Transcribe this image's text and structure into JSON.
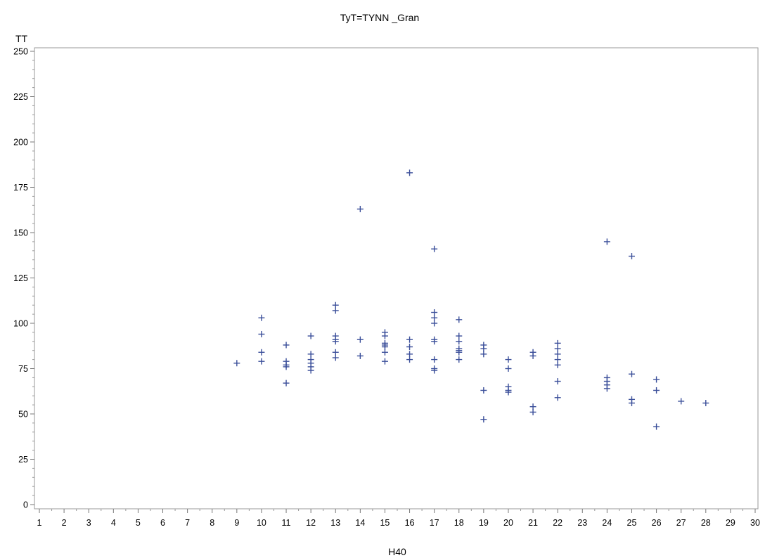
{
  "chart_data": {
    "type": "scatter",
    "title": "TyT=TYNN    _Gran",
    "xlabel": "H40",
    "ylabel": "TT",
    "xlim": [
      1,
      30
    ],
    "ylim": [
      0,
      250
    ],
    "x_ticks": [
      1,
      2,
      3,
      4,
      5,
      6,
      7,
      8,
      9,
      10,
      11,
      12,
      13,
      14,
      15,
      16,
      17,
      18,
      19,
      20,
      21,
      22,
      23,
      24,
      25,
      26,
      27,
      28,
      29,
      30
    ],
    "y_ticks": [
      0,
      25,
      50,
      75,
      100,
      125,
      150,
      175,
      200,
      225,
      250
    ],
    "grid": false,
    "marker": "plus",
    "marker_color": "#3b4f9a",
    "points": [
      [
        9,
        78
      ],
      [
        10,
        103
      ],
      [
        10,
        94
      ],
      [
        10,
        84
      ],
      [
        10,
        79
      ],
      [
        11,
        88
      ],
      [
        11,
        79
      ],
      [
        11,
        77
      ],
      [
        11,
        76
      ],
      [
        11,
        67
      ],
      [
        12,
        93
      ],
      [
        12,
        83
      ],
      [
        12,
        80
      ],
      [
        12,
        78
      ],
      [
        12,
        76
      ],
      [
        12,
        74
      ],
      [
        13,
        110
      ],
      [
        13,
        107
      ],
      [
        13,
        93
      ],
      [
        13,
        91
      ],
      [
        13,
        90
      ],
      [
        13,
        84
      ],
      [
        13,
        81
      ],
      [
        14,
        163
      ],
      [
        14,
        91
      ],
      [
        14,
        82
      ],
      [
        15,
        95
      ],
      [
        15,
        93
      ],
      [
        15,
        89
      ],
      [
        15,
        88
      ],
      [
        15,
        87
      ],
      [
        15,
        84
      ],
      [
        15,
        79
      ],
      [
        16,
        183
      ],
      [
        16,
        91
      ],
      [
        16,
        87
      ],
      [
        16,
        83
      ],
      [
        16,
        80
      ],
      [
        17,
        141
      ],
      [
        17,
        106
      ],
      [
        17,
        103
      ],
      [
        17,
        100
      ],
      [
        17,
        91
      ],
      [
        17,
        90
      ],
      [
        17,
        80
      ],
      [
        17,
        75
      ],
      [
        17,
        74
      ],
      [
        18,
        102
      ],
      [
        18,
        93
      ],
      [
        18,
        90
      ],
      [
        18,
        86
      ],
      [
        18,
        85
      ],
      [
        18,
        84
      ],
      [
        18,
        80
      ],
      [
        19,
        88
      ],
      [
        19,
        86
      ],
      [
        19,
        83
      ],
      [
        19,
        63
      ],
      [
        19,
        47
      ],
      [
        20,
        80
      ],
      [
        20,
        75
      ],
      [
        20,
        65
      ],
      [
        20,
        63
      ],
      [
        20,
        62
      ],
      [
        21,
        84
      ],
      [
        21,
        82
      ],
      [
        21,
        54
      ],
      [
        21,
        51
      ],
      [
        22,
        89
      ],
      [
        22,
        86
      ],
      [
        22,
        83
      ],
      [
        22,
        80
      ],
      [
        22,
        77
      ],
      [
        22,
        68
      ],
      [
        22,
        59
      ],
      [
        24,
        145
      ],
      [
        24,
        70
      ],
      [
        24,
        68
      ],
      [
        24,
        66
      ],
      [
        24,
        64
      ],
      [
        25,
        137
      ],
      [
        25,
        72
      ],
      [
        25,
        58
      ],
      [
        25,
        56
      ],
      [
        26,
        69
      ],
      [
        26,
        63
      ],
      [
        26,
        43
      ],
      [
        27,
        57
      ],
      [
        28,
        56
      ]
    ]
  }
}
